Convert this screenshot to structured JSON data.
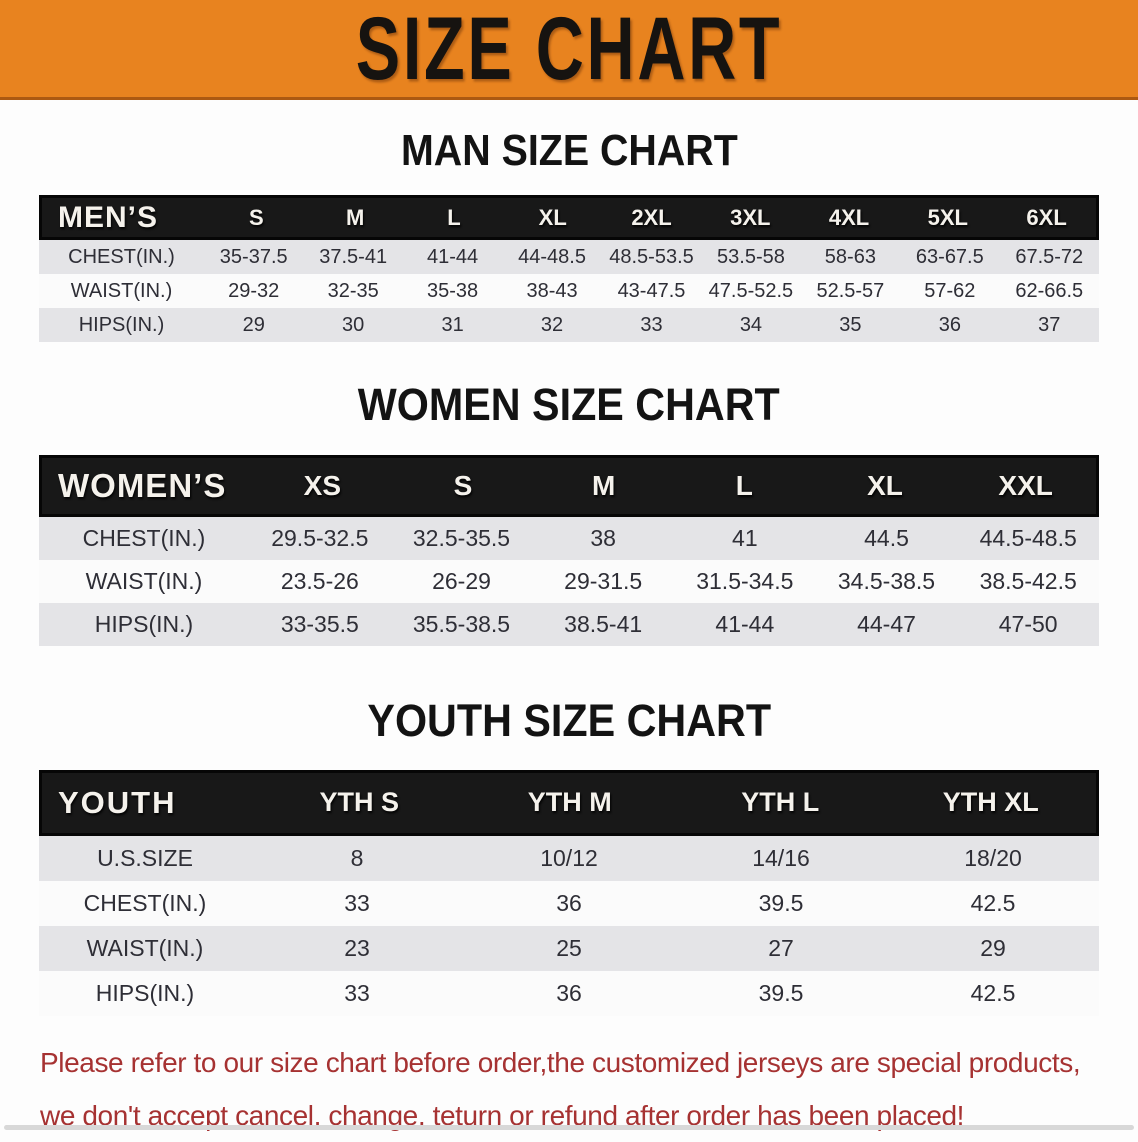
{
  "banner": {
    "title": "SIZE CHART"
  },
  "colors": {
    "banner_orange": "#E8831F",
    "header_black": "#181818",
    "row_gray": "#E4E4E7",
    "disclaimer_red": "#A63232"
  },
  "sections": [
    {
      "heading": "MAN SIZE CHART",
      "corner": "MEN’S",
      "columns": [
        "S",
        "M",
        "L",
        "XL",
        "2XL",
        "3XL",
        "4XL",
        "5XL",
        "6XL"
      ],
      "rows": [
        {
          "label": "CHEST(IN.)",
          "values": [
            "35-37.5",
            "37.5-41",
            "41-44",
            "44-48.5",
            "48.5-53.5",
            "53.5-58",
            "58-63",
            "63-67.5",
            "67.5-72"
          ]
        },
        {
          "label": "WAIST(IN.)",
          "values": [
            "29-32",
            "32-35",
            "35-38",
            "38-43",
            "43-47.5",
            "47.5-52.5",
            "52.5-57",
            "57-62",
            "62-66.5"
          ]
        },
        {
          "label": "HIPS(IN.)",
          "values": [
            "29",
            "30",
            "31",
            "32",
            "33",
            "34",
            "35",
            "36",
            "37"
          ]
        }
      ]
    },
    {
      "heading": "WOMEN SIZE CHART",
      "corner": "WOMEN’S",
      "columns": [
        "XS",
        "S",
        "M",
        "L",
        "XL",
        "XXL"
      ],
      "rows": [
        {
          "label": "CHEST(IN.)",
          "values": [
            "29.5-32.5",
            "32.5-35.5",
            "38",
            "41",
            "44.5",
            "44.5-48.5"
          ]
        },
        {
          "label": "WAIST(IN.)",
          "values": [
            "23.5-26",
            "26-29",
            "29-31.5",
            "31.5-34.5",
            "34.5-38.5",
            "38.5-42.5"
          ]
        },
        {
          "label": "HIPS(IN.)",
          "values": [
            "33-35.5",
            "35.5-38.5",
            "38.5-41",
            "41-44",
            "44-47",
            "47-50"
          ]
        }
      ]
    },
    {
      "heading": "YOUTH SIZE CHART",
      "corner": "YOUTH",
      "columns": [
        "YTH S",
        "YTH M",
        "YTH L",
        "YTH XL"
      ],
      "rows": [
        {
          "label": "U.S.SIZE",
          "values": [
            "8",
            "10/12",
            "14/16",
            "18/20"
          ]
        },
        {
          "label": "CHEST(IN.)",
          "values": [
            "33",
            "36",
            "39.5",
            "42.5"
          ]
        },
        {
          "label": "WAIST(IN.)",
          "values": [
            "23",
            "25",
            "27",
            "29"
          ]
        },
        {
          "label": "HIPS(IN.)",
          "values": [
            "33",
            "36",
            "39.5",
            "42.5"
          ]
        }
      ]
    }
  ],
  "disclaimer": {
    "lines": [
      "Please refer to our size chart before order,the customized jerseys are special products,",
      "we don't accept cancel, change, teturn or refund after order has been placed!"
    ]
  }
}
